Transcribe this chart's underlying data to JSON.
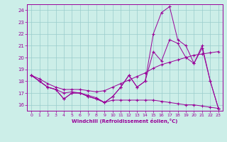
{
  "xlabel": "Windchill (Refroidissement éolien,°C)",
  "background_color": "#cceee8",
  "line_color": "#990099",
  "grid_color": "#99cccc",
  "xlim": [
    -0.5,
    23.5
  ],
  "ylim": [
    15.5,
    24.5
  ],
  "yticks": [
    16,
    17,
    18,
    19,
    20,
    21,
    22,
    23,
    24
  ],
  "xticks": [
    0,
    1,
    2,
    3,
    4,
    5,
    6,
    7,
    8,
    9,
    10,
    11,
    12,
    13,
    14,
    15,
    16,
    17,
    18,
    19,
    20,
    21,
    22,
    23
  ],
  "series": [
    {
      "x": [
        0,
        1,
        2,
        3,
        4,
        5,
        6,
        7,
        8,
        9,
        10,
        11,
        12,
        13,
        14,
        15,
        16,
        17,
        18,
        19,
        20,
        21,
        22,
        23
      ],
      "y": [
        18.5,
        18.0,
        17.5,
        17.3,
        17.0,
        17.1,
        17.0,
        16.8,
        16.6,
        16.2,
        16.4,
        16.4,
        16.4,
        16.4,
        16.4,
        16.4,
        16.3,
        16.2,
        16.1,
        16.0,
        16.0,
        15.9,
        15.8,
        15.7
      ]
    },
    {
      "x": [
        0,
        1,
        2,
        3,
        4,
        5,
        6,
        7,
        8,
        9,
        10,
        11,
        12,
        13,
        14,
        15,
        16,
        17,
        18,
        19,
        20,
        21,
        22,
        23
      ],
      "y": [
        18.5,
        18.2,
        17.8,
        17.5,
        17.3,
        17.3,
        17.3,
        17.2,
        17.1,
        17.2,
        17.5,
        17.8,
        18.1,
        18.4,
        18.7,
        19.1,
        19.4,
        19.6,
        19.8,
        20.0,
        20.2,
        20.3,
        20.4,
        20.5
      ]
    },
    {
      "x": [
        0,
        1,
        2,
        3,
        4,
        5,
        6,
        7,
        8,
        9,
        10,
        11,
        12,
        13,
        14,
        15,
        16,
        17,
        18,
        19,
        20,
        21,
        22,
        23
      ],
      "y": [
        18.5,
        18.0,
        17.5,
        17.3,
        16.5,
        17.0,
        17.0,
        16.7,
        16.5,
        16.2,
        16.7,
        17.5,
        18.5,
        17.5,
        18.0,
        22.0,
        23.8,
        24.3,
        21.5,
        21.0,
        19.5,
        21.0,
        18.0,
        15.7
      ]
    },
    {
      "x": [
        0,
        1,
        2,
        3,
        4,
        5,
        6,
        7,
        8,
        9,
        10,
        11,
        12,
        13,
        14,
        15,
        16,
        17,
        18,
        19,
        20,
        21,
        22,
        23
      ],
      "y": [
        18.5,
        18.0,
        17.5,
        17.3,
        16.5,
        17.0,
        17.0,
        16.7,
        16.5,
        16.2,
        16.7,
        17.5,
        18.5,
        17.5,
        18.0,
        20.5,
        19.7,
        21.5,
        21.2,
        20.0,
        19.5,
        20.8,
        18.0,
        15.7
      ]
    }
  ]
}
